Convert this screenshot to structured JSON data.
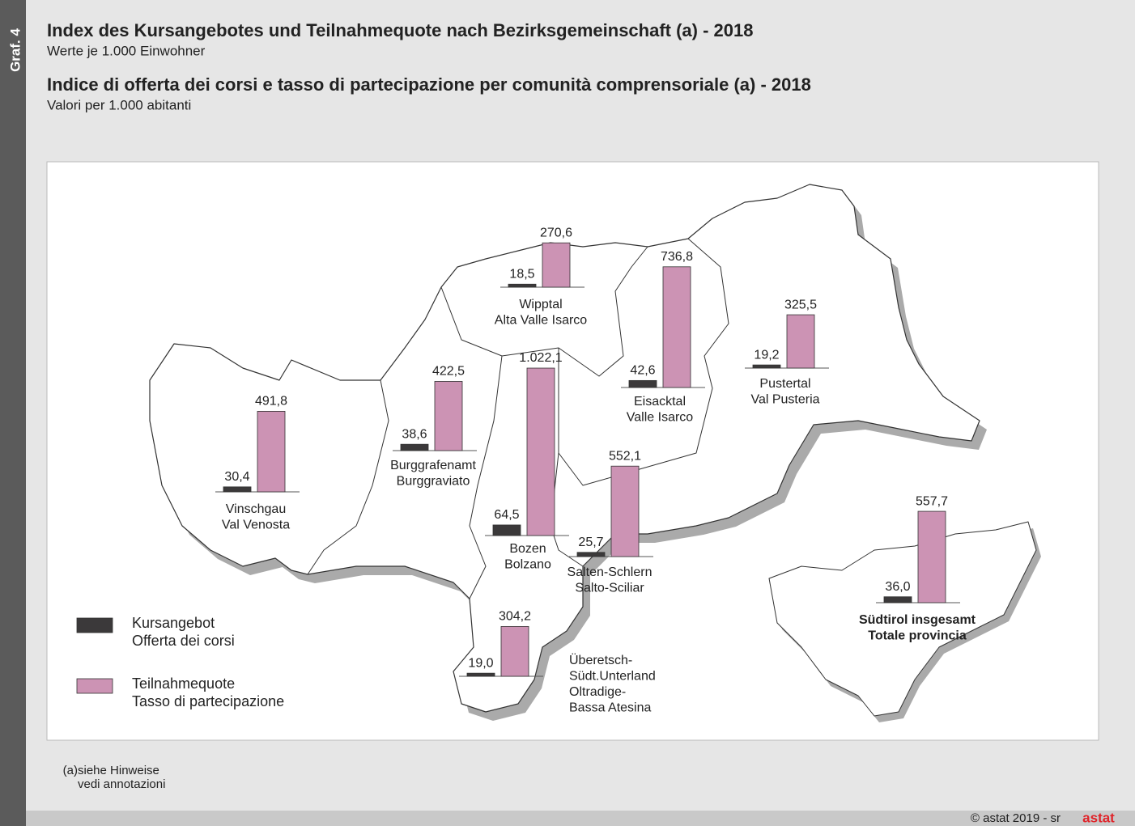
{
  "side_label": "Graf. 4",
  "title_de": "Index des Kursangebotes und Teilnahmequote nach Bezirksgemeinschaft (a) - 2018",
  "subtitle_de": "Werte je 1.000 Einwohner",
  "title_it": "Indice di offerta dei corsi e tasso di partecipazione per comunità comprensoriale (a) - 2018",
  "subtitle_it": "Valori per 1.000 abitanti",
  "chart_data": {
    "type": "map_bar",
    "categories": [
      [
        "Vinschgau",
        "Val Venosta"
      ],
      [
        "Burggrafenamt",
        "Burggraviato"
      ],
      [
        "Wipptal",
        "Alta Valle Isarco"
      ],
      [
        "Eisacktal",
        "Valle Isarco"
      ],
      [
        "Pustertal",
        "Val Pusteria"
      ],
      [
        "Bozen",
        "Bolzano"
      ],
      [
        "Salten-Schlern",
        "Salto-Sciliar"
      ],
      [
        "Überetsch-",
        "Südt.Unterland",
        "Oltradige-",
        "Bassa Atesina"
      ],
      [
        "Südtirol insgesamt",
        "Totale provincia"
      ]
    ],
    "series": [
      {
        "name": [
          "Kursangebot",
          "Offerta dei corsi"
        ],
        "color": "#3b393a",
        "values": [
          30.4,
          38.6,
          18.5,
          42.6,
          19.2,
          64.5,
          25.7,
          19.0,
          36.0
        ],
        "value_labels": [
          "30,4",
          "38,6",
          "18,5",
          "42,6",
          "19,2",
          "64,5",
          "25,7",
          "19,0",
          "36,0"
        ]
      },
      {
        "name": [
          "Teilnahmequote",
          "Tasso di partecipazione"
        ],
        "color": "#cc93b4",
        "values": [
          491.8,
          422.5,
          270.6,
          736.8,
          325.5,
          1022.1,
          552.1,
          304.2,
          557.7
        ],
        "value_labels": [
          "491,8",
          "422,5",
          "270,6",
          "736,8",
          "325,5",
          "1.022,1",
          "552,1",
          "304,2",
          "557,7"
        ]
      }
    ]
  },
  "footnote": [
    "(a)",
    "siehe Hinweise",
    "vedi annotazioni"
  ],
  "copyright": "© astat 2019 - sr",
  "logo": "astat"
}
